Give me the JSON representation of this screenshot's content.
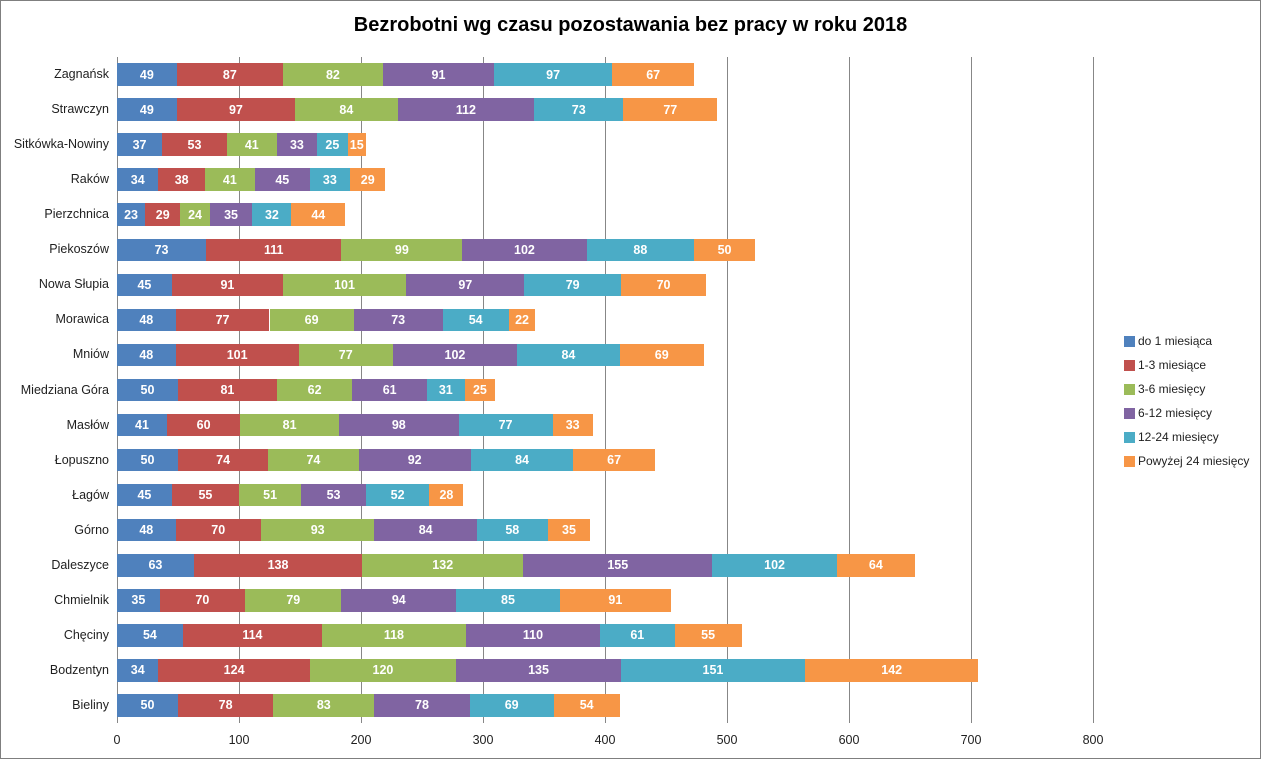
{
  "chart_data": {
    "type": "bar",
    "orientation": "horizontal-stacked",
    "title": "Bezrobotni wg czasu pozostawania bez pracy w roku 2018",
    "xlabel": "",
    "ylabel": "",
    "xlim": [
      0,
      800
    ],
    "x_ticks": [
      0,
      100,
      200,
      300,
      400,
      500,
      600,
      700,
      800
    ],
    "grid": "vertical",
    "legend_position": "right",
    "categories": [
      "Zagnańsk",
      "Strawczyn",
      "Sitkówka-Nowiny",
      "Raków",
      "Pierzchnica",
      "Piekoszów",
      "Nowa Słupia",
      "Morawica",
      "Mniów",
      "Miedziana Góra",
      "Masłów",
      "Łopuszno",
      "Łagów",
      "Górno",
      "Daleszyce",
      "Chmielnik",
      "Chęciny",
      "Bodzentyn",
      "Bieliny"
    ],
    "series": [
      {
        "name": "do 1 miesiąca",
        "color": "#4F81BD",
        "values": [
          49,
          49,
          37,
          34,
          23,
          73,
          45,
          48,
          48,
          50,
          41,
          50,
          45,
          48,
          63,
          35,
          54,
          34,
          50
        ]
      },
      {
        "name": "1-3 miesiące",
        "color": "#C0504D",
        "values": [
          87,
          97,
          53,
          38,
          29,
          111,
          91,
          77,
          101,
          81,
          60,
          74,
          55,
          70,
          138,
          70,
          114,
          124,
          78
        ]
      },
      {
        "name": "3-6 miesięcy",
        "color": "#9BBB59",
        "values": [
          82,
          84,
          41,
          41,
          24,
          99,
          101,
          69,
          77,
          62,
          81,
          74,
          51,
          93,
          132,
          79,
          118,
          120,
          83
        ]
      },
      {
        "name": "6-12 miesięcy",
        "color": "#8064A2",
        "values": [
          91,
          112,
          33,
          45,
          35,
          102,
          97,
          73,
          102,
          61,
          98,
          92,
          53,
          84,
          155,
          94,
          110,
          135,
          78
        ]
      },
      {
        "name": "12-24 miesięcy",
        "color": "#4BACC6",
        "values": [
          97,
          73,
          25,
          33,
          32,
          88,
          79,
          54,
          84,
          31,
          77,
          84,
          52,
          58,
          102,
          85,
          61,
          151,
          69
        ]
      },
      {
        "name": "Powyżej 24 miesięcy",
        "color": "#F79646",
        "values": [
          67,
          77,
          15,
          29,
          44,
          50,
          70,
          22,
          69,
          25,
          33,
          67,
          28,
          35,
          64,
          91,
          55,
          142,
          54
        ]
      }
    ]
  }
}
